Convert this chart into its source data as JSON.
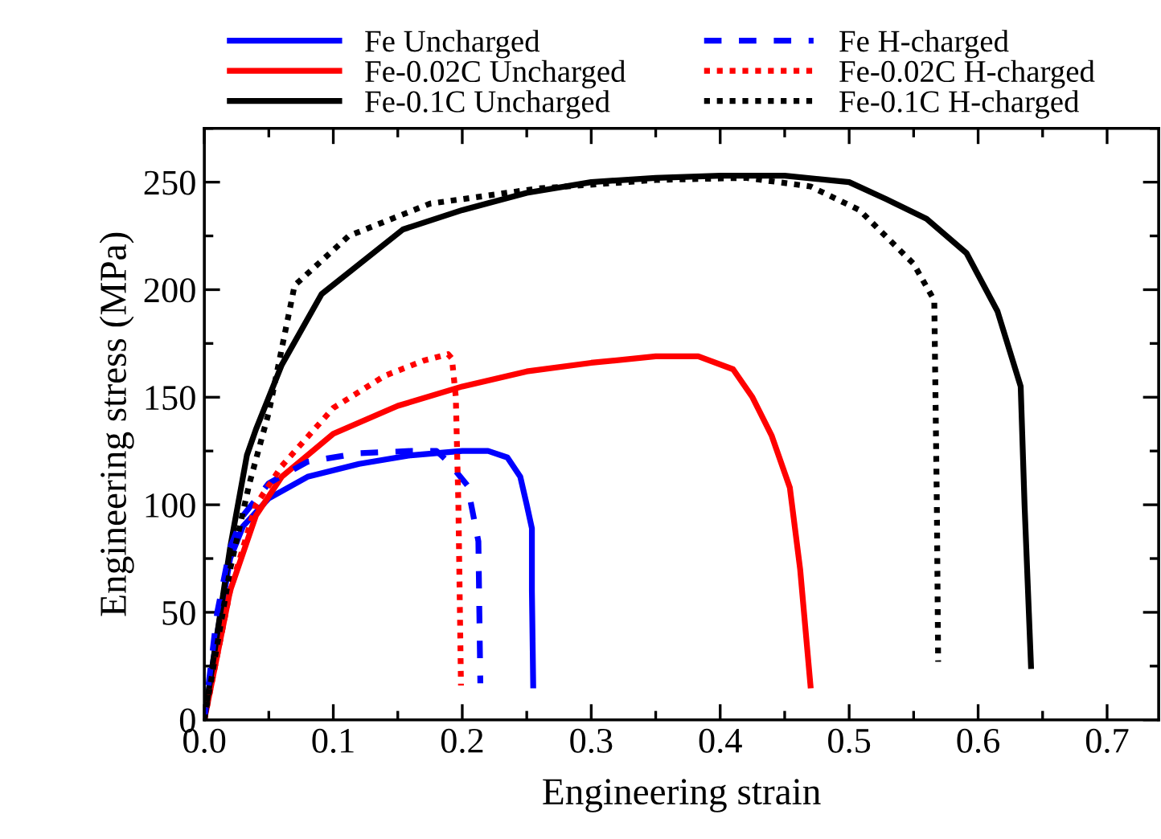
{
  "chart_data": {
    "type": "line",
    "xlabel": "Engineering strain",
    "ylabel": "Engineering stress (MPa)",
    "xlim": [
      0,
      0.74
    ],
    "ylim": [
      0,
      275
    ],
    "xticks": [
      {
        "value": 0,
        "label": "0.0"
      },
      0.1,
      0.2,
      0.3,
      0.4,
      0.5,
      0.6,
      0.7
    ],
    "yticks": [
      0,
      50,
      100,
      150,
      200,
      250
    ],
    "grid": false,
    "legend": "top",
    "marker": "none",
    "series": [
      {
        "name": "Fe Uncharged",
        "color": "#0000ff",
        "line_style": "solid",
        "x": [
          0,
          0.01,
          0.02,
          0.03,
          0.05,
          0.08,
          0.12,
          0.16,
          0.2,
          0.22,
          0.235,
          0.245,
          0.25,
          0.254,
          0.254,
          0.255
        ],
        "values": [
          0,
          40,
          75,
          90,
          103,
          113,
          119,
          123,
          125,
          125,
          122,
          113,
          100,
          89,
          60,
          16
        ]
      },
      {
        "name": "Fe-0.02C Uncharged",
        "color": "#ff0000",
        "line_style": "solid",
        "x": [
          0,
          0.01,
          0.02,
          0.04,
          0.06,
          0.1,
          0.15,
          0.2,
          0.25,
          0.3,
          0.35,
          0.383,
          0.41,
          0.425,
          0.44,
          0.454,
          0.462,
          0.47
        ],
        "values": [
          0,
          30,
          60,
          95,
          113,
          133,
          146,
          155,
          162,
          166,
          169,
          169,
          163,
          150,
          132,
          108,
          70,
          16
        ]
      },
      {
        "name": "Fe-0.1C Uncharged",
        "color": "#000000",
        "line_style": "solid",
        "x": [
          0,
          0.01,
          0.02,
          0.033,
          0.04,
          0.06,
          0.091,
          0.154,
          0.2,
          0.25,
          0.3,
          0.35,
          0.4,
          0.45,
          0.5,
          0.529,
          0.56,
          0.591,
          0.615,
          0.633,
          0.636,
          0.641
        ],
        "values": [
          0,
          40,
          80,
          123,
          135,
          165,
          198,
          228,
          237,
          245,
          250,
          252,
          253,
          253,
          250,
          242,
          233,
          217,
          190,
          155,
          100,
          25
        ]
      },
      {
        "name": "Fe H-charged",
        "color": "#0000ff",
        "line_style": "dashed",
        "x": [
          0,
          0.01,
          0.02,
          0.03,
          0.05,
          0.08,
          0.12,
          0.16,
          0.18,
          0.189,
          0.204,
          0.2125,
          0.214
        ],
        "values": [
          0,
          50,
          80,
          95,
          110,
          120,
          124,
          125,
          125,
          120,
          109,
          83,
          17
        ]
      },
      {
        "name": "Fe-0.02C H-charged",
        "color": "#ff0000",
        "line_style": "dotted",
        "x": [
          0,
          0.02,
          0.04,
          0.06,
          0.1,
          0.14,
          0.17,
          0.189,
          0.192,
          0.195,
          0.197,
          0.199
        ],
        "values": [
          0,
          60,
          100,
          118,
          145,
          160,
          167,
          170,
          168,
          150,
          100,
          16
        ]
      },
      {
        "name": "Fe-0.1C H-charged",
        "color": "#000000",
        "line_style": "dotted",
        "x": [
          0,
          0.02,
          0.035,
          0.05,
          0.07,
          0.112,
          0.175,
          0.258,
          0.35,
          0.42,
          0.47,
          0.508,
          0.55,
          0.566,
          0.568,
          0.569
        ],
        "values": [
          0,
          70,
          110,
          143,
          202,
          225,
          240,
          247,
          251,
          252,
          248,
          237,
          212,
          195,
          100,
          27
        ]
      }
    ]
  }
}
